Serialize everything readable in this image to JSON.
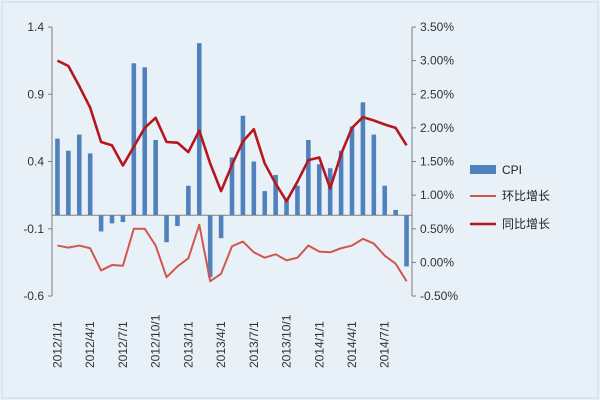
{
  "chart_data": {
    "type": "bar",
    "categories": [
      "2012/1/1",
      "2012/2/1",
      "2012/3/1",
      "2012/4/1",
      "2012/5/1",
      "2012/6/1",
      "2012/7/1",
      "2012/8/1",
      "2012/9/1",
      "2012/10/1",
      "2012/11/1",
      "2012/12/1",
      "2013/1/1",
      "2013/2/1",
      "2013/3/1",
      "2013/4/1",
      "2013/5/1",
      "2013/6/1",
      "2013/7/1",
      "2013/8/1",
      "2013/9/1",
      "2013/10/1",
      "2013/11/1",
      "2013/12/1",
      "2014/1/1",
      "2014/2/1",
      "2014/3/1",
      "2014/4/1",
      "2014/5/1",
      "2014/6/1",
      "2014/7/1",
      "2014/8/1",
      "2014/9/1"
    ],
    "x_tick_labels": [
      "2012/1/1",
      "2012/4/1",
      "2012/7/1",
      "2012/10/1",
      "2013/1/1",
      "2013/4/1",
      "2013/7/1",
      "2013/10/1",
      "2014/1/1",
      "2014/4/1",
      "2014/7/1"
    ],
    "series": [
      {
        "name": "CPI",
        "kind": "bar",
        "axis": "left",
        "color": "#4f81bd",
        "values": [
          0.57,
          0.48,
          0.6,
          0.46,
          -0.12,
          -0.06,
          -0.05,
          1.13,
          1.1,
          0.56,
          -0.2,
          -0.08,
          0.22,
          1.28,
          -0.46,
          -0.17,
          0.43,
          0.74,
          0.4,
          0.18,
          0.3,
          0.12,
          0.22,
          0.56,
          0.38,
          0.35,
          0.48,
          0.66,
          0.84,
          0.6,
          0.22,
          0.04,
          -0.38
        ]
      },
      {
        "name": "环比增长",
        "kind": "line",
        "axis": "right",
        "color": "#d0574f",
        "values": [
          0.25,
          0.22,
          0.25,
          0.21,
          -0.12,
          -0.04,
          -0.05,
          0.5,
          0.5,
          0.25,
          -0.22,
          -0.06,
          0.06,
          0.56,
          -0.28,
          -0.17,
          0.24,
          0.31,
          0.15,
          0.07,
          0.12,
          0.03,
          0.07,
          0.25,
          0.16,
          0.15,
          0.21,
          0.25,
          0.35,
          0.28,
          0.1,
          -0.02,
          -0.28
        ]
      },
      {
        "name": "同比增长",
        "kind": "line",
        "axis": "right",
        "color": "#b7161c",
        "values": [
          3.0,
          2.92,
          2.62,
          2.3,
          1.79,
          1.74,
          1.44,
          1.72,
          2.0,
          2.15,
          1.79,
          1.78,
          1.64,
          1.96,
          1.47,
          1.06,
          1.45,
          1.8,
          1.98,
          1.47,
          1.17,
          0.91,
          1.2,
          1.52,
          1.56,
          1.1,
          1.61,
          2.0,
          2.16,
          2.11,
          2.05,
          2.0,
          1.74
        ]
      }
    ],
    "y_left": {
      "ylim": [
        -0.6,
        1.4
      ],
      "tick_labels": [
        "1.4",
        "0.9",
        "0.4",
        "-0.1",
        "-0.6"
      ],
      "tick_values": [
        1.4,
        0.9,
        0.4,
        -0.1,
        -0.6
      ]
    },
    "y_right": {
      "ylim": [
        -0.5,
        3.5
      ],
      "tick_labels": [
        "3.50%",
        "3.00%",
        "2.50%",
        "2.00%",
        "1.50%",
        "1.00%",
        "0.50%",
        "0.00%",
        "-0.50%"
      ],
      "tick_values": [
        3.5,
        3.0,
        2.5,
        2.0,
        1.5,
        1.0,
        0.5,
        0.0,
        -0.5
      ]
    },
    "grid": false,
    "legend_position": "right"
  }
}
